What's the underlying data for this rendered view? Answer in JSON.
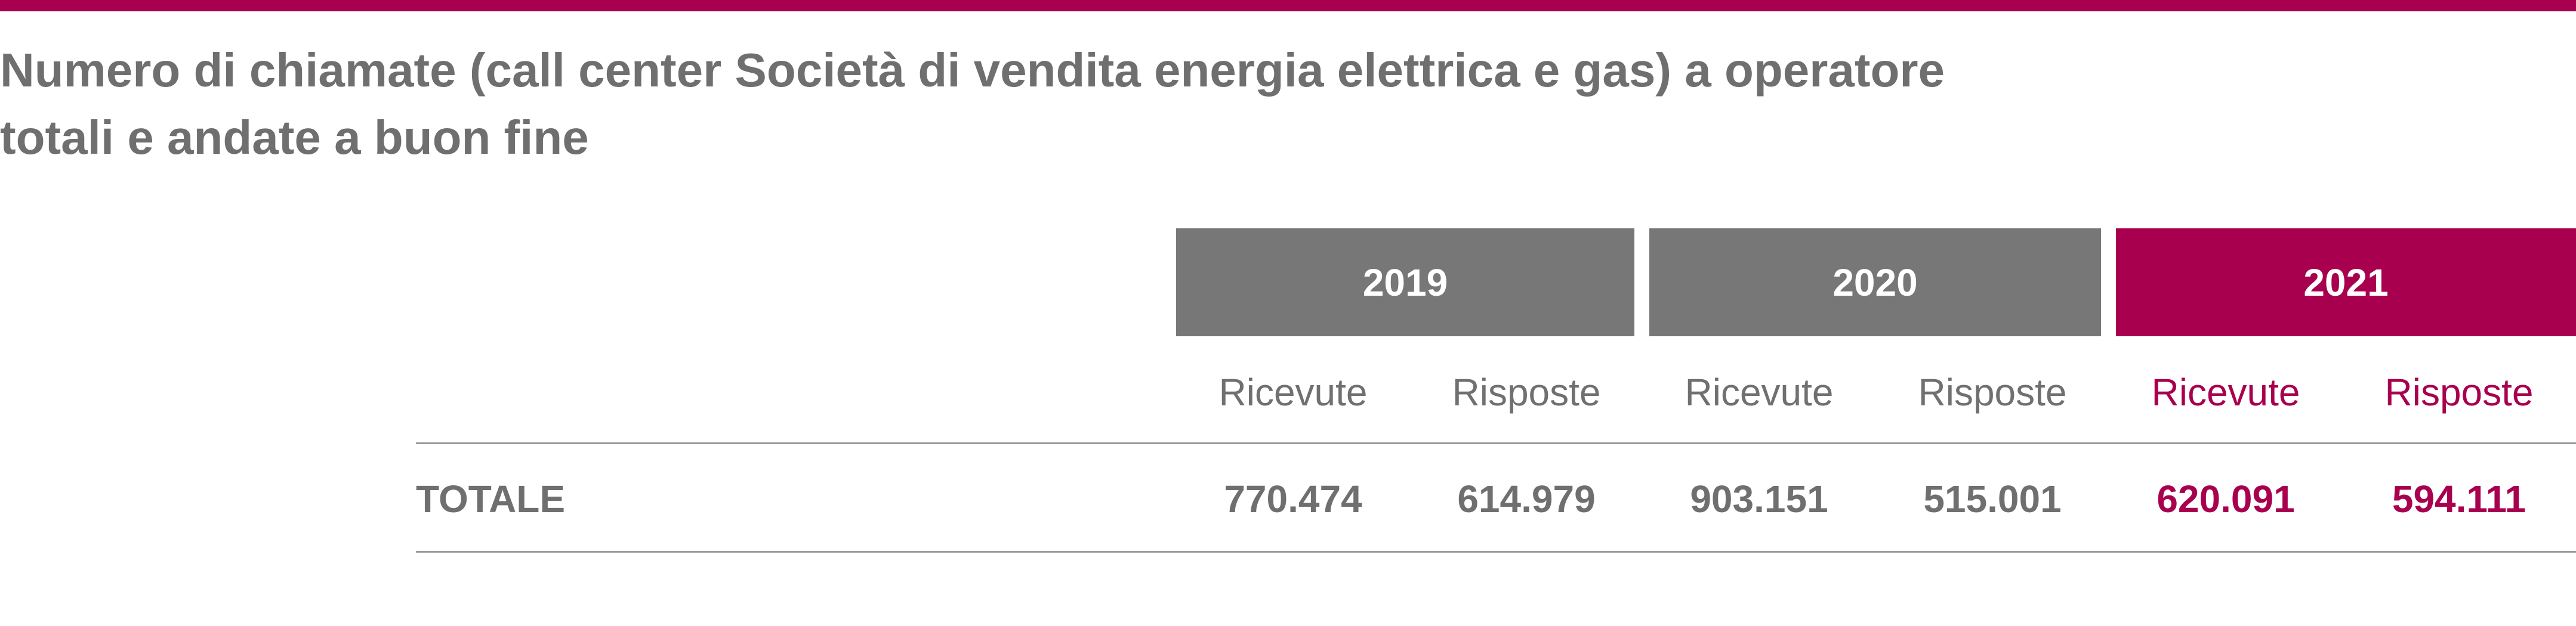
{
  "title": [
    "Numero di chiamate (call center Società di vendita energia elettrica e gas) a operatore",
    "totali e andate a buon fine"
  ],
  "table": {
    "years": [
      "2019",
      "2020",
      "2021"
    ],
    "subheaders": [
      "Ricevute",
      "Risposte",
      "Ricevute",
      "Risposte",
      "Ricevute",
      "Risposte"
    ],
    "rows": [
      [
        "TOTALE",
        "770.474",
        "614.979",
        "903.151",
        "515.001",
        "620.091",
        "594.111"
      ]
    ]
  }
}
